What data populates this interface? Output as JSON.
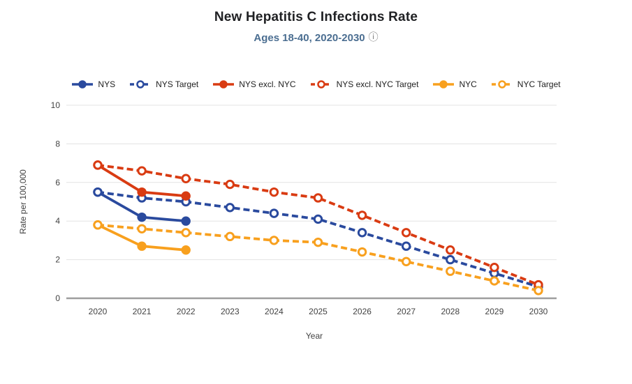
{
  "header": {
    "title": "New Hepatitis C Infections Rate",
    "subtitle": "Ages 18-40, 2020-2030",
    "info_icon": "ⓘ"
  },
  "colors": {
    "nys_blue": "#2a4a9e",
    "excl_nyc_red": "#d93b12",
    "nyc_orange": "#f8a01e",
    "subtitle_blue": "#4b6e91",
    "gridline": "#e3e3e3",
    "axis_line": "#9e9e9e",
    "tick_text": "#424242"
  },
  "legend": {
    "items": [
      {
        "label": "NYS",
        "color": "#2a4a9e",
        "dashed": false
      },
      {
        "label": "NYS Target",
        "color": "#2a4a9e",
        "dashed": true
      },
      {
        "label": "NYS excl. NYC",
        "color": "#d93b12",
        "dashed": false
      },
      {
        "label": "NYS excl. NYC Target",
        "color": "#d93b12",
        "dashed": true
      },
      {
        "label": "NYC",
        "color": "#f8a01e",
        "dashed": false
      },
      {
        "label": "NYC Target",
        "color": "#f8a01e",
        "dashed": true
      }
    ]
  },
  "chart_data": {
    "type": "line",
    "title": "New Hepatitis C Infections Rate",
    "subtitle": "Ages 18-40, 2020-2030",
    "xlabel": "Year",
    "ylabel": "Rate per 100,000",
    "ylim": [
      0,
      10
    ],
    "yticks": [
      0,
      2,
      4,
      6,
      8,
      10
    ],
    "grid": true,
    "legend_position": "top",
    "categories": [
      "2020",
      "2021",
      "2022",
      "2023",
      "2024",
      "2025",
      "2026",
      "2027",
      "2028",
      "2029",
      "2030"
    ],
    "series": [
      {
        "name": "NYS",
        "color": "#2a4a9e",
        "style": "solid",
        "marker": "filled",
        "values": [
          5.5,
          4.2,
          4.0,
          null,
          null,
          null,
          null,
          null,
          null,
          null,
          null
        ]
      },
      {
        "name": "NYS Target",
        "color": "#2a4a9e",
        "style": "dashed",
        "marker": "open",
        "values": [
          5.5,
          5.2,
          5.0,
          4.7,
          4.4,
          4.1,
          3.4,
          2.7,
          2.0,
          1.3,
          0.6
        ]
      },
      {
        "name": "NYS excl. NYC",
        "color": "#d93b12",
        "style": "solid",
        "marker": "filled",
        "values": [
          6.9,
          5.5,
          5.3,
          null,
          null,
          null,
          null,
          null,
          null,
          null,
          null
        ]
      },
      {
        "name": "NYS excl. NYC Target",
        "color": "#d93b12",
        "style": "dashed",
        "marker": "open",
        "values": [
          6.9,
          6.6,
          6.2,
          5.9,
          5.5,
          5.2,
          4.3,
          3.4,
          2.5,
          1.6,
          0.7
        ]
      },
      {
        "name": "NYC",
        "color": "#f8a01e",
        "style": "solid",
        "marker": "filled",
        "values": [
          3.8,
          2.7,
          2.5,
          null,
          null,
          null,
          null,
          null,
          null,
          null,
          null
        ]
      },
      {
        "name": "NYC Target",
        "color": "#f8a01e",
        "style": "dashed",
        "marker": "open",
        "values": [
          3.8,
          3.6,
          3.4,
          3.2,
          3.0,
          2.9,
          2.4,
          1.9,
          1.4,
          0.9,
          0.4
        ]
      }
    ]
  }
}
